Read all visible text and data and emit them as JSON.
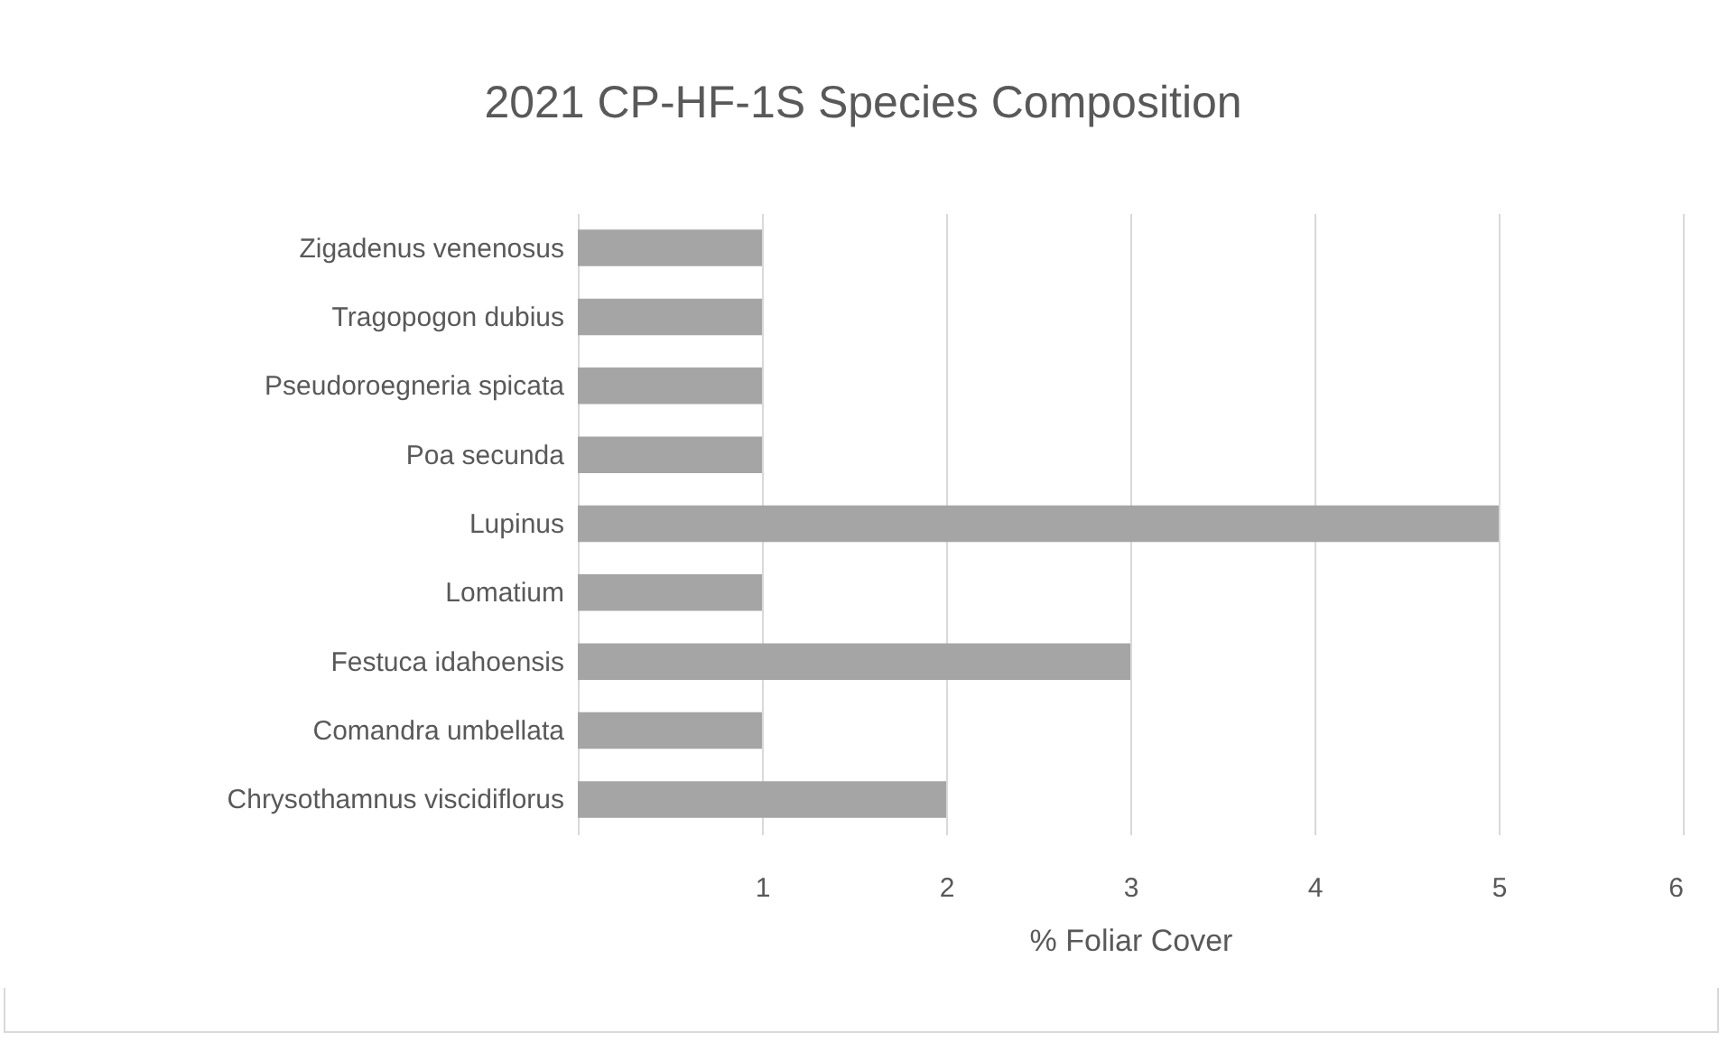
{
  "chart_data": {
    "type": "bar",
    "orientation": "horizontal",
    "title": "2021 CP-HF-1S Species Composition",
    "xlabel": "% Foliar Cover",
    "categories": [
      "Zigadenus venenosus",
      "Tragopogon dubius",
      "Pseudoroegneria spicata",
      "Poa secunda",
      "Lupinus",
      "Lomatium",
      "Festuca idahoensis",
      "Comandra umbellata",
      "Chrysothamnus viscidiflorus"
    ],
    "values": [
      1,
      1,
      1,
      1,
      5,
      1,
      3,
      1,
      2
    ],
    "color": "#a5a5a5",
    "xlim": [
      0,
      6
    ],
    "xticks": [
      1,
      2,
      3,
      4,
      5,
      6
    ],
    "grid": "x"
  }
}
